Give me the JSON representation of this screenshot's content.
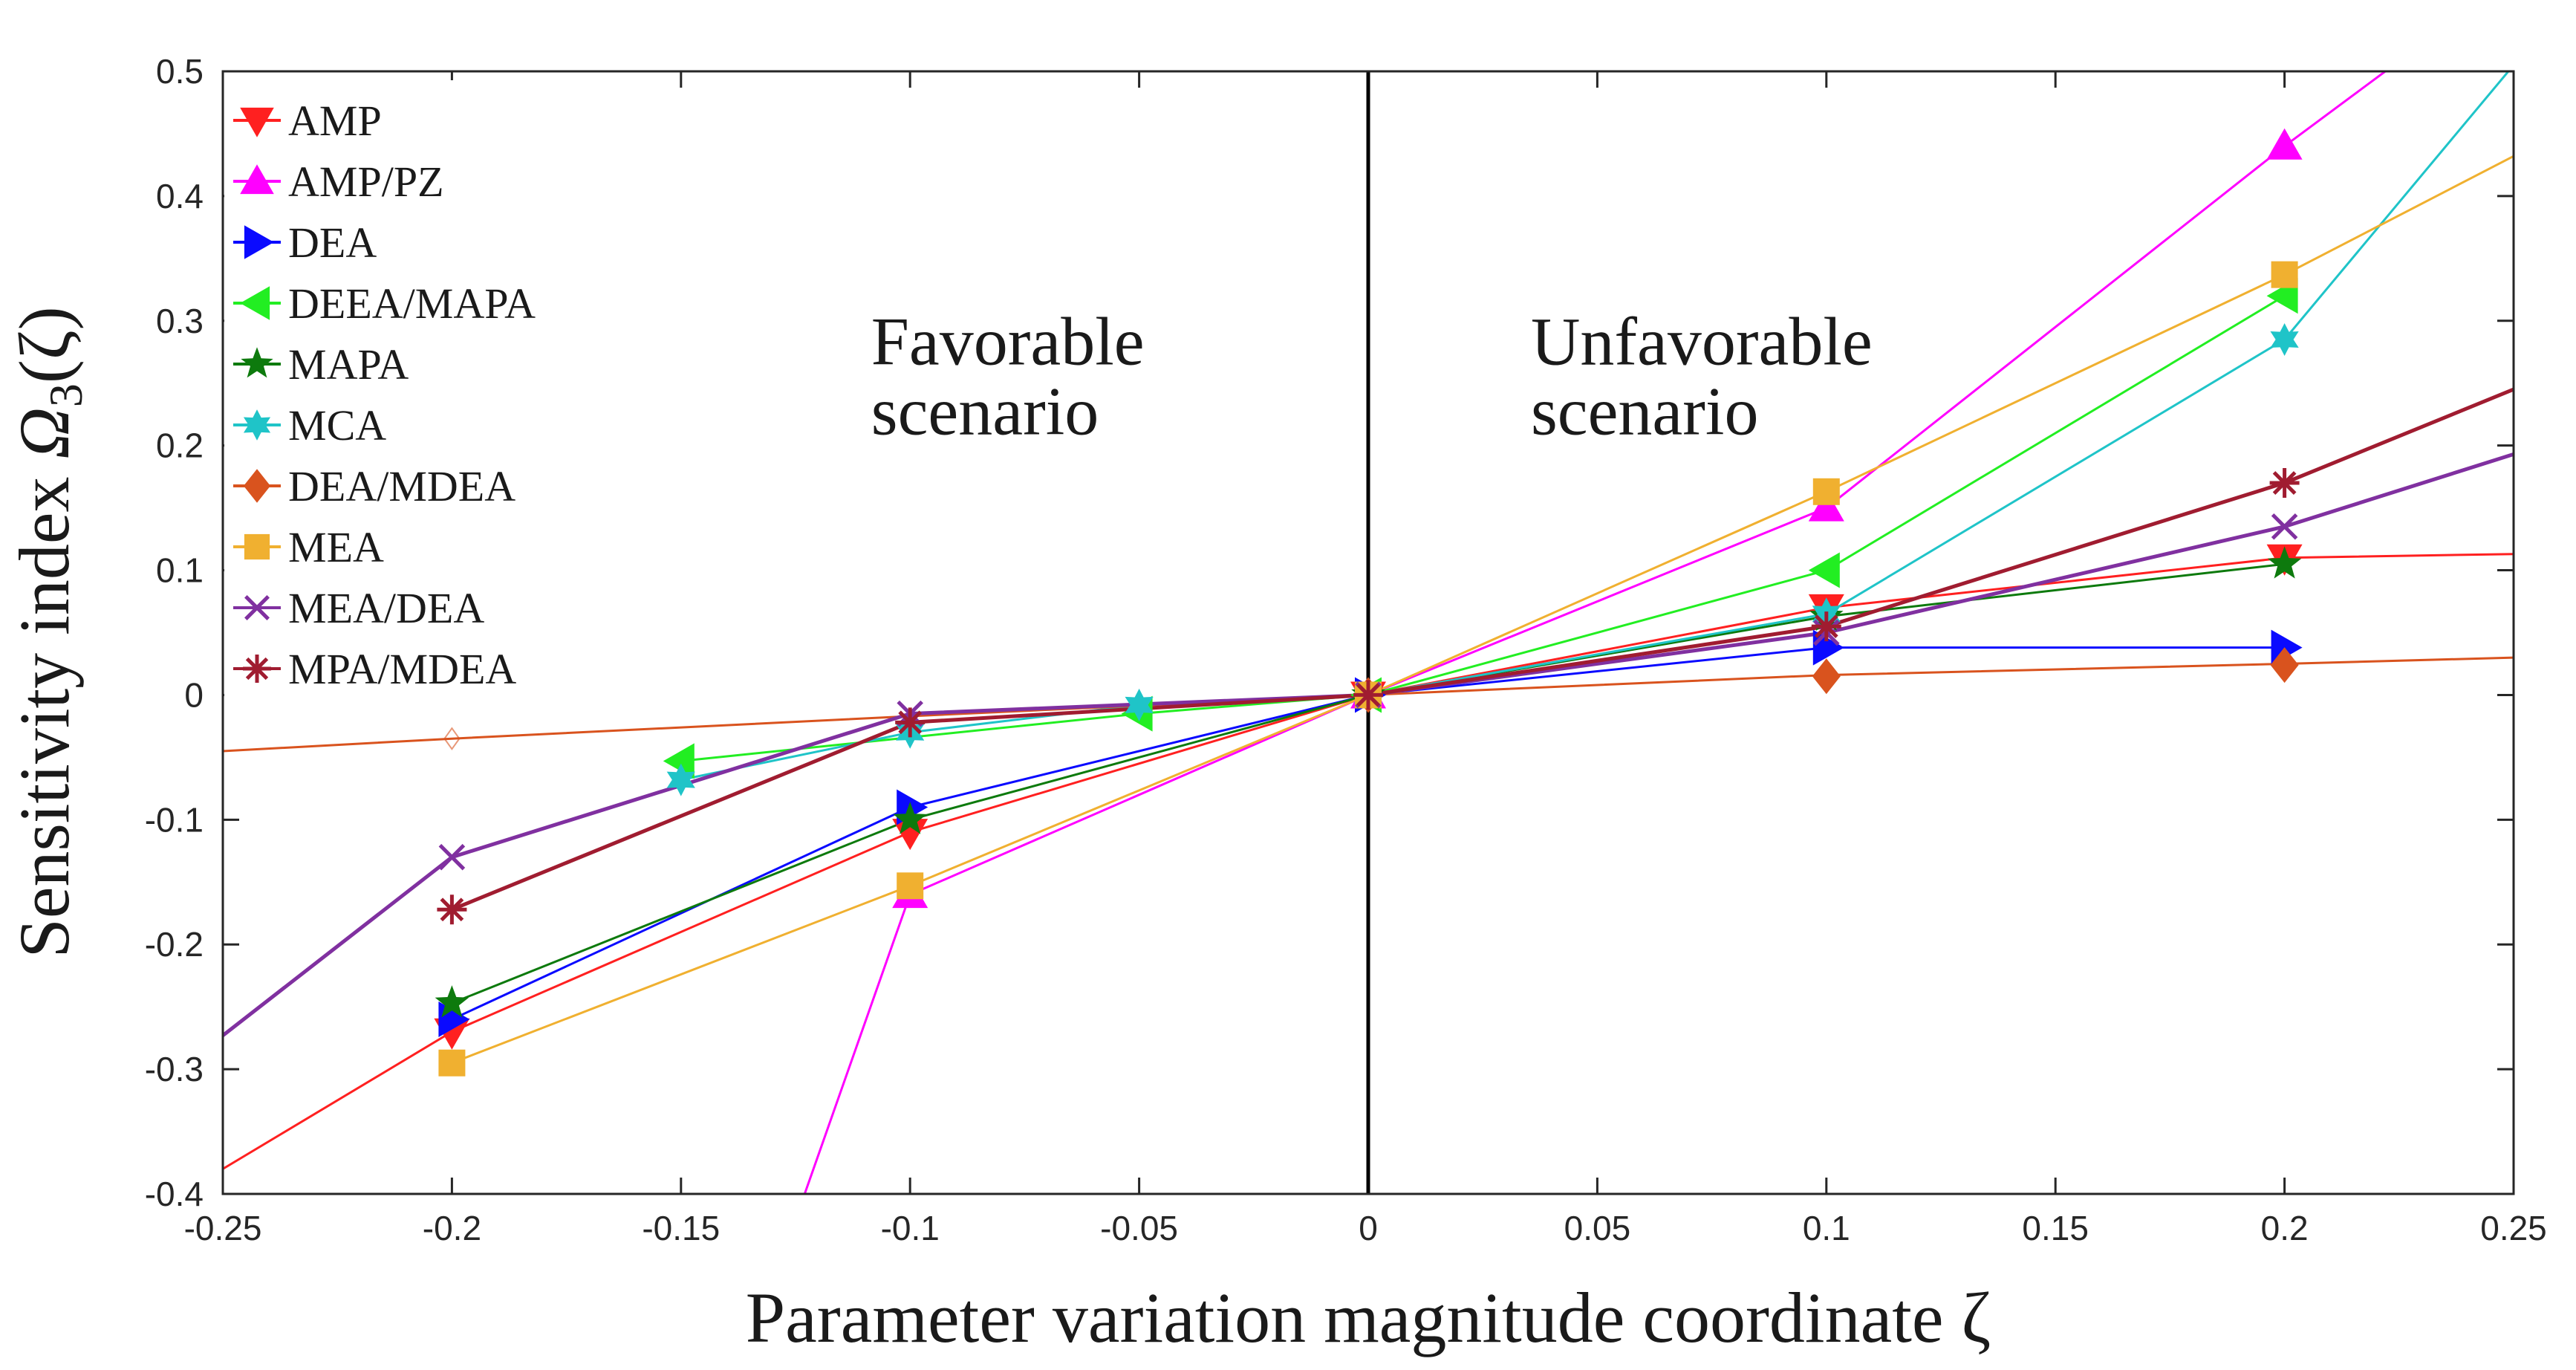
{
  "chart_data": {
    "type": "line",
    "title": "",
    "xlabel": "Parameter variation magnitude coordinate ζ",
    "ylabel": "Sensitivity index Ω₃(ζ)",
    "ylabel_main": "Sensitivity index ",
    "ylabel_symbol": "Ω",
    "ylabel_sub": "3",
    "ylabel_arg": "(ζ)",
    "xlim": [
      -0.25,
      0.25
    ],
    "ylim": [
      -0.4,
      0.5
    ],
    "xticks": [
      -0.25,
      -0.2,
      -0.15,
      -0.1,
      -0.05,
      0,
      0.05,
      0.1,
      0.15,
      0.2,
      0.25
    ],
    "xtick_labels": [
      "-0.25",
      "-0.2",
      "-0.15",
      "-0.1",
      "-0.05",
      "0",
      "0.05",
      "0.1",
      "0.15",
      "0.2",
      "0.25"
    ],
    "yticks": [
      -0.4,
      -0.3,
      -0.2,
      -0.1,
      0,
      0.1,
      0.2,
      0.3,
      0.4,
      0.5
    ],
    "ytick_labels": [
      "-0.4",
      "-0.3",
      "-0.2",
      "-0.1",
      "0",
      "0.1",
      "0.2",
      "0.3",
      "0.4",
      "0.5"
    ],
    "legend_position": "top-left",
    "annotations": [
      {
        "lines": [
          "Favorable",
          "scenario"
        ],
        "x": -0.1085,
        "y": 0.265
      },
      {
        "lines": [
          "Unfavorable",
          "scenario"
        ],
        "x": 0.0355,
        "y": 0.265
      }
    ],
    "series": [
      {
        "name": "AMP",
        "color": "#ff2020",
        "marker": "triangle-down",
        "points": [
          [
            -0.2,
            -0.27
          ],
          [
            -0.1,
            -0.11
          ],
          [
            0,
            0
          ],
          [
            0.1,
            0.07
          ],
          [
            0.2,
            0.11
          ]
        ],
        "fit": [
          [
            -0.25,
            -0.38
          ],
          [
            -0.2,
            -0.27
          ],
          [
            -0.1,
            -0.11
          ],
          [
            0,
            0
          ],
          [
            0.1,
            0.07
          ],
          [
            0.2,
            0.11
          ],
          [
            0.25,
            0.113
          ]
        ]
      },
      {
        "name": "AMP/PZ",
        "color": "#ff00ff",
        "marker": "triangle-up",
        "points": [
          [
            -0.1,
            -0.16
          ],
          [
            0,
            0
          ],
          [
            0.1,
            0.15
          ],
          [
            0.2,
            0.44
          ]
        ],
        "fit": [
          [
            -0.123,
            -0.4
          ],
          [
            -0.1,
            -0.16
          ],
          [
            0,
            0
          ],
          [
            0.1,
            0.15
          ],
          [
            0.2,
            0.44
          ],
          [
            0.222,
            0.5
          ]
        ]
      },
      {
        "name": "DEA",
        "color": "#0a0aff",
        "marker": "triangle-right",
        "points": [
          [
            -0.2,
            -0.26
          ],
          [
            -0.1,
            -0.09
          ],
          [
            0,
            0
          ],
          [
            0.1,
            0.038
          ],
          [
            0.2,
            0.038
          ]
        ],
        "fit": [
          [
            -0.2,
            -0.26
          ],
          [
            -0.1,
            -0.09
          ],
          [
            0,
            0
          ],
          [
            0.1,
            0.038
          ],
          [
            0.2,
            0.038
          ]
        ]
      },
      {
        "name": "DEEA/MAPA",
        "color": "#22ee22",
        "marker": "triangle-left",
        "points": [
          [
            -0.15,
            -0.053
          ],
          [
            -0.05,
            -0.015
          ],
          [
            0,
            0
          ],
          [
            0.1,
            0.1
          ],
          [
            0.2,
            0.32
          ]
        ],
        "fit": [
          [
            -0.15,
            -0.053
          ],
          [
            -0.05,
            -0.015
          ],
          [
            0,
            0
          ],
          [
            0.1,
            0.1
          ],
          [
            0.2,
            0.32
          ]
        ]
      },
      {
        "name": "MAPA",
        "color": "#0d7a0d",
        "marker": "pentagram",
        "points": [
          [
            -0.2,
            -0.247
          ],
          [
            -0.1,
            -0.1
          ],
          [
            0,
            0
          ],
          [
            0.1,
            0.063
          ],
          [
            0.2,
            0.105
          ]
        ],
        "fit": [
          [
            -0.2,
            -0.247
          ],
          [
            -0.1,
            -0.1
          ],
          [
            0,
            0
          ],
          [
            0.1,
            0.063
          ],
          [
            0.2,
            0.105
          ]
        ]
      },
      {
        "name": "MCA",
        "color": "#1fc4c8",
        "marker": "hexagram",
        "points": [
          [
            -0.15,
            -0.068
          ],
          [
            -0.1,
            -0.03
          ],
          [
            -0.05,
            -0.008
          ],
          [
            0,
            0
          ],
          [
            0.1,
            0.065
          ],
          [
            0.2,
            0.285
          ]
        ],
        "fit": [
          [
            -0.15,
            -0.068
          ],
          [
            -0.1,
            -0.03
          ],
          [
            -0.05,
            -0.008
          ],
          [
            0,
            0
          ],
          [
            0.1,
            0.065
          ],
          [
            0.2,
            0.285
          ],
          [
            0.25,
            0.505
          ]
        ]
      },
      {
        "name": "DEA/MDEA",
        "color": "#d9531e",
        "marker": "diamond",
        "points": [
          [
            0,
            0
          ],
          [
            0.1,
            0.015
          ],
          [
            0.2,
            0.024
          ]
        ],
        "ghost_points": [
          [
            -0.2,
            -0.035
          ]
        ],
        "fit": [
          [
            -0.25,
            -0.045
          ],
          [
            -0.2,
            -0.035
          ],
          [
            -0.1,
            -0.017
          ],
          [
            0,
            0
          ],
          [
            0.1,
            0.016
          ],
          [
            0.2,
            0.025
          ],
          [
            0.25,
            0.03
          ]
        ]
      },
      {
        "name": "MEA",
        "color": "#f0b030",
        "marker": "square",
        "points": [
          [
            -0.2,
            -0.295
          ],
          [
            -0.1,
            -0.153
          ],
          [
            0,
            0
          ],
          [
            0.1,
            0.163
          ],
          [
            0.2,
            0.337
          ]
        ],
        "fit": [
          [
            -0.2,
            -0.295
          ],
          [
            -0.1,
            -0.153
          ],
          [
            0,
            0
          ],
          [
            0.1,
            0.163
          ],
          [
            0.2,
            0.337
          ],
          [
            0.25,
            0.432
          ]
        ]
      },
      {
        "name": "MEA/DEA",
        "color": "#8030a0",
        "marker": "x",
        "points": [
          [
            -0.2,
            -0.13
          ],
          [
            -0.1,
            -0.015
          ],
          [
            0,
            0
          ],
          [
            0.1,
            0.05
          ],
          [
            0.2,
            0.135
          ]
        ],
        "fit": [
          [
            -0.25,
            -0.273
          ],
          [
            -0.2,
            -0.13
          ],
          [
            -0.1,
            -0.015
          ],
          [
            0,
            0
          ],
          [
            0.1,
            0.05
          ],
          [
            0.2,
            0.135
          ],
          [
            0.25,
            0.193
          ]
        ]
      },
      {
        "name": "MPA/MDEA",
        "color": "#a01c30",
        "marker": "asterisk",
        "points": [
          [
            -0.2,
            -0.172
          ],
          [
            -0.1,
            -0.022
          ],
          [
            0,
            0
          ],
          [
            0.1,
            0.055
          ],
          [
            0.2,
            0.17
          ]
        ],
        "fit": [
          [
            -0.2,
            -0.172
          ],
          [
            -0.1,
            -0.022
          ],
          [
            0,
            0
          ],
          [
            0.1,
            0.055
          ],
          [
            0.2,
            0.17
          ],
          [
            0.25,
            0.245
          ]
        ]
      }
    ]
  }
}
